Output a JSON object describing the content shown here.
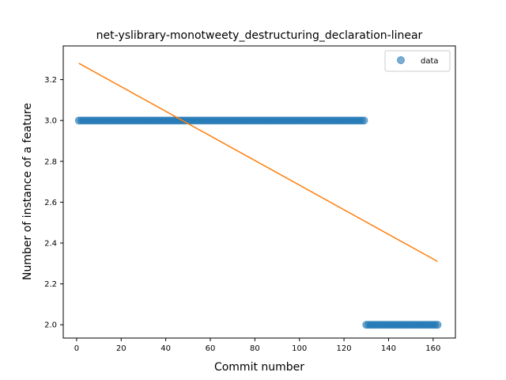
{
  "chart_data": {
    "type": "scatter",
    "title": "net-yslibrary-monotweety_destructuring_declaration-linear",
    "xlabel": "Commit number",
    "ylabel": "Number of instance of a feature",
    "xlim": [
      -6,
      170
    ],
    "ylim": [
      1.935,
      3.365
    ],
    "xticks": [
      0,
      20,
      40,
      60,
      80,
      100,
      120,
      140,
      160
    ],
    "yticks": [
      2.0,
      2.2,
      2.4,
      2.6,
      2.8,
      3.0,
      3.2
    ],
    "ytick_labels": [
      "2.0",
      "2.2",
      "2.4",
      "2.6",
      "2.8",
      "3.0",
      "3.2"
    ],
    "grid": false,
    "legend": {
      "position": "top-right",
      "entries": [
        "data"
      ]
    },
    "colors": {
      "data": "#1f77b4",
      "fit": "#ff7f0e"
    },
    "series": [
      {
        "name": "data",
        "kind": "scatter",
        "segments": [
          {
            "x_start": 1,
            "x_end": 129,
            "step": 1,
            "y": 3.0
          },
          {
            "x_start": 130,
            "x_end": 162,
            "step": 1,
            "y": 2.0
          }
        ]
      },
      {
        "kind": "line",
        "x": [
          1,
          162
        ],
        "y": [
          3.28,
          2.31
        ]
      }
    ]
  }
}
